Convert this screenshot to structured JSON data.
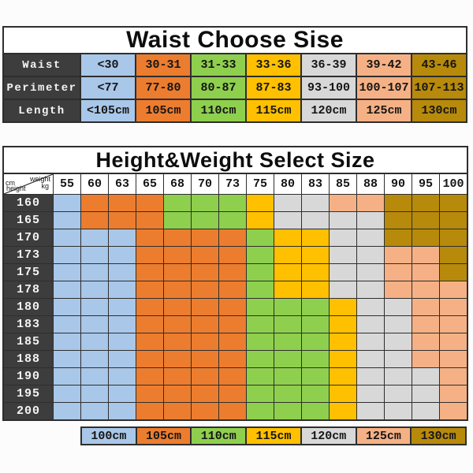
{
  "chart_data": [
    {
      "type": "table",
      "title": "Waist Choose Sise",
      "row_labels": [
        "Waist",
        "Perimeter",
        "Length"
      ],
      "rows": [
        [
          "<30",
          "30-31",
          "31-33",
          "33-36",
          "36-39",
          "39-42",
          "43-46"
        ],
        [
          "<77",
          "77-80",
          "80-87",
          "87-83",
          "93-100",
          "100-107",
          "107-113"
        ],
        [
          "<105cm",
          "105cm",
          "110cm",
          "115cm",
          "120cm",
          "125cm",
          "130cm"
        ]
      ],
      "column_colors": [
        "#A9C7E8",
        "#EC7D2F",
        "#8FCF4E",
        "#FFC000",
        "#D8D8D8",
        "#F5B185",
        "#B78A0B"
      ]
    },
    {
      "type": "heatmap",
      "title": "Height&Weight Select Size",
      "corner_labels": {
        "top_left": "cm",
        "top_right": "weight",
        "bottom_left": "height",
        "bottom_right": "kg"
      },
      "xlabel": "weight kg",
      "ylabel": "cm height",
      "x": [
        "55",
        "60",
        "63",
        "65",
        "68",
        "70",
        "73",
        "75",
        "80",
        "83",
        "85",
        "88",
        "90",
        "95",
        "100"
      ],
      "y": [
        "160",
        "165",
        "170",
        "173",
        "175",
        "178",
        "180",
        "183",
        "185",
        "188",
        "190",
        "195",
        "200"
      ],
      "values": [
        [
          100,
          105,
          105,
          105,
          110,
          110,
          110,
          115,
          120,
          120,
          125,
          125,
          130,
          130,
          130
        ],
        [
          100,
          105,
          105,
          105,
          110,
          110,
          110,
          115,
          120,
          120,
          120,
          120,
          130,
          130,
          130
        ],
        [
          100,
          100,
          100,
          105,
          105,
          105,
          105,
          110,
          115,
          115,
          120,
          120,
          130,
          130,
          130
        ],
        [
          100,
          100,
          100,
          105,
          105,
          105,
          105,
          110,
          115,
          115,
          120,
          120,
          125,
          125,
          130
        ],
        [
          100,
          100,
          100,
          105,
          105,
          105,
          105,
          110,
          115,
          115,
          120,
          120,
          125,
          125,
          130
        ],
        [
          100,
          100,
          100,
          105,
          105,
          105,
          105,
          110,
          115,
          115,
          120,
          120,
          125,
          125,
          125
        ],
        [
          100,
          100,
          100,
          105,
          105,
          105,
          105,
          110,
          110,
          110,
          115,
          120,
          120,
          125,
          125
        ],
        [
          100,
          100,
          100,
          105,
          105,
          105,
          105,
          110,
          110,
          110,
          115,
          120,
          120,
          125,
          125
        ],
        [
          100,
          100,
          100,
          105,
          105,
          105,
          105,
          110,
          110,
          110,
          115,
          120,
          120,
          125,
          125
        ],
        [
          100,
          100,
          100,
          105,
          105,
          105,
          105,
          110,
          110,
          110,
          115,
          120,
          120,
          125,
          125
        ],
        [
          100,
          100,
          100,
          105,
          105,
          105,
          105,
          110,
          110,
          110,
          115,
          120,
          120,
          120,
          125
        ],
        [
          100,
          100,
          100,
          105,
          105,
          105,
          105,
          110,
          110,
          110,
          115,
          120,
          120,
          120,
          125
        ],
        [
          100,
          100,
          100,
          105,
          105,
          105,
          105,
          110,
          110,
          110,
          115,
          120,
          120,
          120,
          125
        ]
      ],
      "size_color_map": {
        "100": "#A9C7E8",
        "105": "#EC7D2F",
        "110": "#8FCF4E",
        "115": "#FFC000",
        "120": "#D8D8D8",
        "125": "#F5B185",
        "130": "#B78A0B"
      },
      "legend": [
        {
          "label": "100cm",
          "color": "#A9C7E8"
        },
        {
          "label": "105cm",
          "color": "#EC7D2F"
        },
        {
          "label": "110cm",
          "color": "#8FCF4E"
        },
        {
          "label": "115cm",
          "color": "#FFC000"
        },
        {
          "label": "120cm",
          "color": "#D8D8D8"
        },
        {
          "label": "125cm",
          "color": "#F5B185"
        },
        {
          "label": "130cm",
          "color": "#B78A0B"
        }
      ],
      "legend_position": "bottom"
    }
  ],
  "colors": {
    "header_dark": "#3d3d3d",
    "grid_line": "#2e2e2e",
    "background": "#fcfcfc"
  }
}
